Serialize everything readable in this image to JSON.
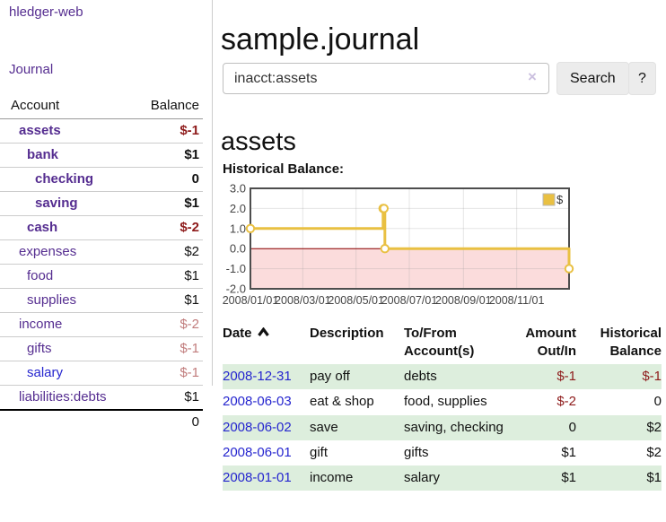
{
  "app": {
    "title": "hledger-web",
    "nav_journal": "Journal"
  },
  "sidebar": {
    "table": {
      "col_account": "Account",
      "col_balance": "Balance",
      "accounts": [
        {
          "name": "assets",
          "balance": "$-1",
          "level": 1,
          "bold": true,
          "tone": "neg",
          "link_tone": "purple"
        },
        {
          "name": "bank",
          "balance": "$1",
          "level": 2,
          "bold": true,
          "tone": "pos",
          "link_tone": "purple"
        },
        {
          "name": "checking",
          "balance": "0",
          "level": 3,
          "bold": true,
          "tone": "pos",
          "link_tone": "purple"
        },
        {
          "name": "saving",
          "balance": "$1",
          "level": 3,
          "bold": true,
          "tone": "pos",
          "link_tone": "purple"
        },
        {
          "name": "cash",
          "balance": "$-2",
          "level": 2,
          "bold": true,
          "tone": "neg",
          "link_tone": "purple"
        },
        {
          "name": "expenses",
          "balance": "$2",
          "level": 1,
          "bold": false,
          "tone": "pos",
          "link_tone": "purple"
        },
        {
          "name": "food",
          "balance": "$1",
          "level": 2,
          "bold": false,
          "tone": "pos",
          "link_tone": "purple"
        },
        {
          "name": "supplies",
          "balance": "$1",
          "level": 2,
          "bold": false,
          "tone": "pos",
          "link_tone": "purple"
        },
        {
          "name": "income",
          "balance": "$-2",
          "level": 1,
          "bold": false,
          "tone": "soft",
          "link_tone": "purple"
        },
        {
          "name": "gifts",
          "balance": "$-1",
          "level": 2,
          "bold": false,
          "tone": "soft",
          "link_tone": "purple"
        },
        {
          "name": "salary",
          "balance": "$-1",
          "level": 2,
          "bold": false,
          "tone": "soft",
          "link_tone": "blue"
        },
        {
          "name": "liabilities:debts",
          "balance": "$1",
          "level": 1,
          "bold": false,
          "tone": "pos",
          "link_tone": "purple"
        }
      ],
      "total": "0"
    }
  },
  "main": {
    "title": "sample.journal",
    "search": {
      "value": "inacct:assets",
      "clear_icon": "×",
      "button": "Search",
      "help_button": "?"
    },
    "account_heading": "assets",
    "chart_label": "Historical Balance:"
  },
  "chart_data": {
    "type": "line",
    "title": "Historical Balance",
    "step": true,
    "series": [
      {
        "name": "$",
        "color": "#e9c042",
        "points": [
          [
            "2008-01-01",
            1
          ],
          [
            "2008-06-01",
            2
          ],
          [
            "2008-06-02",
            2
          ],
          [
            "2008-06-03",
            0
          ],
          [
            "2008-12-31",
            -1
          ]
        ]
      }
    ],
    "x_range": [
      "2008-01-01",
      "2008-12-31"
    ],
    "x_ticks": [
      "2008/01/01",
      "2008/03/01",
      "2008/05/01",
      "2008/07/01",
      "2008/09/01",
      "2008/11/01"
    ],
    "y_ticks": [
      "3.0",
      "2.0",
      "1.0",
      "0.0",
      "-1.0",
      "-2.0"
    ],
    "ylim": [
      -2,
      3
    ],
    "grid": true,
    "legend": {
      "label": "$",
      "position": "top-right"
    },
    "negative_region_color": "#fbdcdc",
    "zero_line_color": "#8b0000",
    "border_color": "#4d4d4d"
  },
  "register": {
    "headers": {
      "date": "Date",
      "description": "Description",
      "accounts": "To/From Account(s)",
      "amount": "Amount Out/In",
      "balance": "Historical Balance"
    },
    "rows": [
      {
        "date": "2008-12-31",
        "description": "pay off",
        "accounts": "debts",
        "amount": "$-1",
        "amount_neg": true,
        "balance": "$-1",
        "balance_neg": true,
        "green": true
      },
      {
        "date": "2008-06-03",
        "description": "eat & shop",
        "accounts": "food, supplies",
        "amount": "$-2",
        "amount_neg": true,
        "balance": "0",
        "balance_neg": false,
        "green": false
      },
      {
        "date": "2008-06-02",
        "description": "save",
        "accounts": "saving, checking",
        "amount": "0",
        "amount_neg": false,
        "balance": "$2",
        "balance_neg": false,
        "green": true
      },
      {
        "date": "2008-06-01",
        "description": "gift",
        "accounts": "gifts",
        "amount": "$1",
        "amount_neg": false,
        "balance": "$2",
        "balance_neg": false,
        "green": false
      },
      {
        "date": "2008-01-01",
        "description": "income",
        "accounts": "salary",
        "amount": "$1",
        "amount_neg": false,
        "balance": "$1",
        "balance_neg": false,
        "green": true
      }
    ]
  }
}
